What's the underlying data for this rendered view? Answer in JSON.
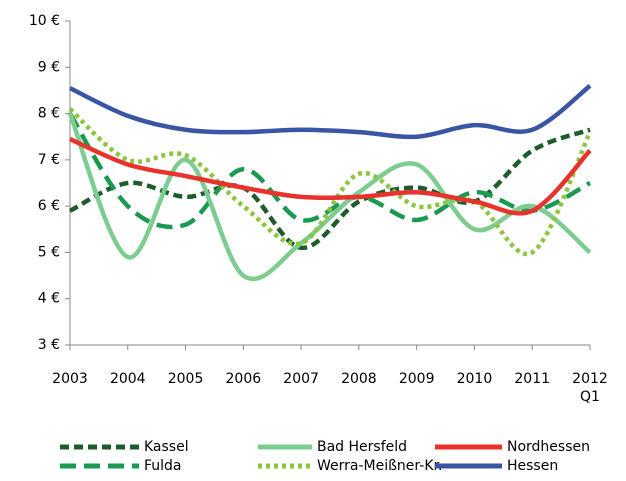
{
  "chart_data": {
    "type": "line",
    "categories": [
      "2003",
      "2004",
      "2005",
      "2006",
      "2007",
      "2008",
      "2009",
      "2010",
      "2011",
      "2012 Q1"
    ],
    "ylim": [
      3,
      10
    ],
    "yticks": [
      {
        "value": 3,
        "label": "3 €"
      },
      {
        "value": 4,
        "label": "4 €"
      },
      {
        "value": 5,
        "label": "5 €"
      },
      {
        "value": 6,
        "label": "6 €"
      },
      {
        "value": 7,
        "label": "7 €"
      },
      {
        "value": 8,
        "label": "8 €"
      },
      {
        "value": 9,
        "label": "9 €"
      },
      {
        "value": 10,
        "label": "10 €"
      }
    ],
    "series": [
      {
        "name": "Kassel",
        "color": "#1e5c2e",
        "dash": "9,5",
        "values": [
          5.9,
          6.5,
          6.2,
          6.4,
          5.1,
          6.1,
          6.4,
          6.1,
          7.2,
          7.65
        ]
      },
      {
        "name": "Fulda",
        "color": "#1a9a50",
        "dash": "16,8",
        "values": [
          8.0,
          6.0,
          5.6,
          6.8,
          5.7,
          6.2,
          5.7,
          6.3,
          5.9,
          6.5
        ]
      },
      {
        "name": "Bad Hersfeld",
        "color": "#7dcc90",
        "dash": "",
        "values": [
          8.0,
          4.9,
          7.0,
          4.5,
          5.2,
          6.3,
          6.9,
          5.5,
          6.0,
          5.0
        ]
      },
      {
        "name": "Werra-Meißner-Kr.",
        "color": "#8cc63f",
        "dash": "4,4",
        "values": [
          8.1,
          7.0,
          7.1,
          6.0,
          5.2,
          6.7,
          6.0,
          6.1,
          5.0,
          7.6
        ]
      },
      {
        "name": "Nordhessen",
        "color": "#e8322b",
        "dash": "",
        "values": [
          7.45,
          6.9,
          6.65,
          6.4,
          6.2,
          6.2,
          6.3,
          6.1,
          5.9,
          7.2
        ]
      },
      {
        "name": "Hessen",
        "color": "#3a55a4",
        "dash": "",
        "values": [
          8.55,
          7.95,
          7.65,
          7.6,
          7.65,
          7.6,
          7.5,
          7.75,
          7.65,
          8.6
        ]
      }
    ]
  }
}
